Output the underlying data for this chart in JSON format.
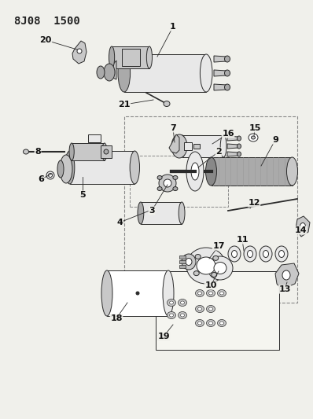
{
  "title": "8J08  1500",
  "bg_color": "#f0f0eb",
  "text_color": "#222222",
  "title_fontsize": 10,
  "label_fontsize": 8,
  "ec": "#2a2a2a",
  "fc_white": "#ffffff",
  "fc_light": "#e8e8e8",
  "fc_mid": "#c8c8c8",
  "fc_dark": "#aaaaaa",
  "fc_verydark": "#888888"
}
